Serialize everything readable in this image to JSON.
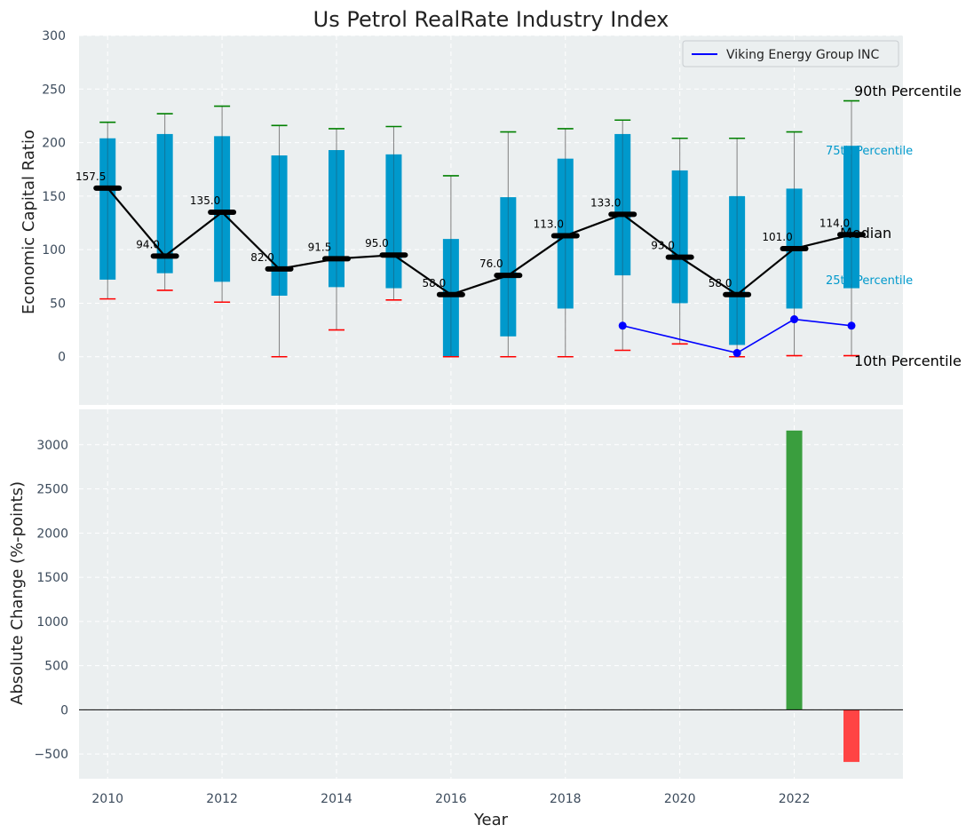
{
  "colors": {
    "panel_bg": "#EBEFF0",
    "grid": "#ffffff",
    "box": "#0099CC",
    "whisker": "#808080",
    "cap_high": "#008000",
    "cap_low": "#FF0000",
    "median": "#000000",
    "company": "#0000FF",
    "bar_pos": "#3A9E3E",
    "bar_neg": "#FF4444",
    "label_light": "#0099CC",
    "tick": "#3C4B5C"
  },
  "chart_data": [
    {
      "type": "box",
      "title": "Us Petrol RealRate Industry Index",
      "xlabel": "",
      "ylabel": "Economic Capital Ratio",
      "xlim": [
        2009.5,
        2023.9
      ],
      "ylim": [
        -45,
        300
      ],
      "yticks": [
        "0",
        "50",
        "100",
        "150",
        "200",
        "250",
        "300"
      ],
      "ytick_values": [
        0,
        50,
        100,
        150,
        200,
        250,
        300
      ],
      "legend": {
        "position": "top-right",
        "entries": [
          "Viking Energy Group INC"
        ]
      },
      "years": [
        2010,
        2011,
        2012,
        2013,
        2014,
        2015,
        2016,
        2017,
        2018,
        2019,
        2020,
        2021,
        2022,
        2023
      ],
      "p10": [
        54,
        62,
        51,
        0,
        25,
        53,
        0,
        0,
        0,
        6,
        12,
        0,
        1,
        1
      ],
      "p25": [
        72,
        78,
        70,
        57,
        65,
        64,
        0,
        19,
        45,
        76,
        50,
        11,
        45,
        64
      ],
      "median": [
        157.5,
        94.0,
        135.0,
        82.0,
        91.5,
        95.0,
        58.0,
        76.0,
        113.0,
        133.0,
        93.0,
        58.0,
        101.0,
        114.0
      ],
      "median_labels": [
        "157.5",
        "94.0",
        "135.0",
        "82.0",
        "91.5",
        "95.0",
        "58.0",
        "76.0",
        "113.0",
        "133.0",
        "93.0",
        "58.0",
        "101.0",
        "114.0"
      ],
      "p75": [
        204,
        208,
        206,
        188,
        193,
        189,
        110,
        149,
        185,
        208,
        174,
        150,
        157,
        197
      ],
      "p90": [
        219,
        227,
        234,
        216,
        213,
        215,
        169,
        210,
        213,
        221,
        204,
        204,
        210,
        239
      ],
      "company": {
        "name": "Viking Energy Group INC",
        "years": [
          2019,
          2021,
          2022,
          2023
        ],
        "values": [
          29,
          3.5,
          35,
          29
        ]
      },
      "annotations": {
        "p90": "90th Percentile",
        "p75": "75th Percentile",
        "median": "Median",
        "p25": "25th Percentile",
        "p10": "10th Percentile"
      }
    },
    {
      "type": "bar",
      "xlabel": "Year",
      "ylabel": "Absolute Change (%-points)",
      "xlim": [
        2009.5,
        2023.9
      ],
      "ylim": [
        -780,
        3400
      ],
      "yticks": [
        "−500",
        "0",
        "500",
        "1000",
        "1500",
        "2000",
        "2500",
        "3000"
      ],
      "ytick_values": [
        -500,
        0,
        500,
        1000,
        1500,
        2000,
        2500,
        3000
      ],
      "xticks": [
        "2010",
        "2012",
        "2014",
        "2016",
        "2018",
        "2020",
        "2022"
      ],
      "xtick_values": [
        2010,
        2012,
        2014,
        2016,
        2018,
        2020,
        2022
      ],
      "years": [
        2022,
        2023
      ],
      "values": [
        3160,
        -590
      ]
    }
  ]
}
